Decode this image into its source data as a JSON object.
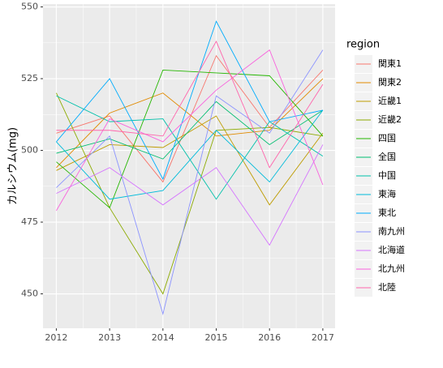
{
  "chart_data": {
    "type": "line",
    "y_label": "カルシウム(mg)",
    "legend_title": "region",
    "x": [
      2012,
      2013,
      2014,
      2015,
      2016,
      2017
    ],
    "xlim": [
      2011.75,
      2017.23
    ],
    "xticks": [
      2012,
      2013,
      2014,
      2015,
      2016,
      2017
    ],
    "ylim": [
      438,
      551
    ],
    "yticks": [
      450,
      475,
      500,
      525,
      550
    ],
    "grid": true,
    "series": [
      {
        "name": "関東1",
        "color": "#F8766D",
        "values": [
          506,
          512,
          489,
          533,
          508,
          528
        ]
      },
      {
        "name": "関東2",
        "color": "#E18A00",
        "values": [
          494,
          513,
          520,
          505,
          507,
          525
        ]
      },
      {
        "name": "近畿1",
        "color": "#BE9C00",
        "values": [
          493,
          502,
          501,
          512,
          481,
          506
        ]
      },
      {
        "name": "近畿2",
        "color": "#8CAB00",
        "values": [
          520,
          480,
          450,
          507,
          508,
          505
        ]
      },
      {
        "name": "四国",
        "color": "#24B700",
        "values": [
          496,
          480,
          528,
          527,
          526,
          505
        ]
      },
      {
        "name": "全国",
        "color": "#00BE70",
        "values": [
          499,
          504,
          497,
          517,
          502,
          514
        ]
      },
      {
        "name": "中国",
        "color": "#00C1AB",
        "values": [
          519,
          510,
          511,
          483,
          510,
          498
        ]
      },
      {
        "name": "東海",
        "color": "#00BBDA",
        "values": [
          503,
          483,
          486,
          507,
          489,
          514
        ]
      },
      {
        "name": "東北",
        "color": "#00ACFC",
        "values": [
          503,
          525,
          490,
          545,
          510,
          514
        ]
      },
      {
        "name": "南九州",
        "color": "#8B93FF",
        "values": [
          487,
          505,
          443,
          519,
          506,
          535
        ]
      },
      {
        "name": "北海道",
        "color": "#D575FE",
        "values": [
          485,
          494,
          481,
          494,
          467,
          502
        ]
      },
      {
        "name": "北九州",
        "color": "#F962DD",
        "values": [
          479,
          511,
          503,
          521,
          535,
          488
        ]
      },
      {
        "name": "北陸",
        "color": "#FF65AC",
        "values": [
          507,
          507,
          505,
          538,
          494,
          523
        ]
      }
    ]
  }
}
